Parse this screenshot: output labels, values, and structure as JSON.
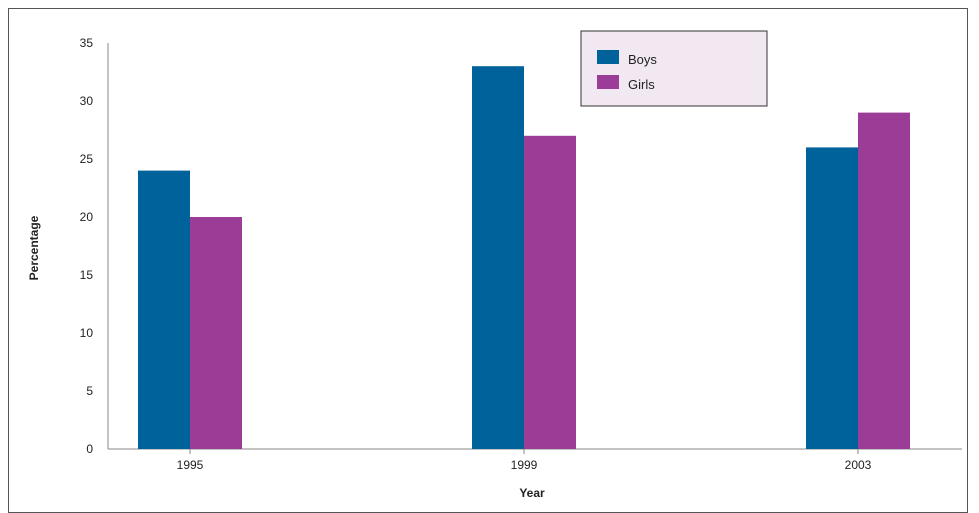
{
  "chart_data": {
    "type": "bar",
    "title": "",
    "xlabel": "Year",
    "ylabel": "Percentage",
    "categories": [
      "1995",
      "1999",
      "2003"
    ],
    "series": [
      {
        "name": "Boys",
        "color": "#00629b",
        "values": [
          24,
          33,
          26
        ]
      },
      {
        "name": "Girls",
        "color": "#9b3d97",
        "values": [
          20,
          27,
          29
        ]
      }
    ],
    "ylim": [
      0,
      35
    ],
    "yticks": [
      "0",
      "5",
      "10",
      "15",
      "20",
      "25",
      "30",
      "35"
    ],
    "grid": false,
    "legend_position": "top-center",
    "legend_background": "#f1e8f2"
  }
}
